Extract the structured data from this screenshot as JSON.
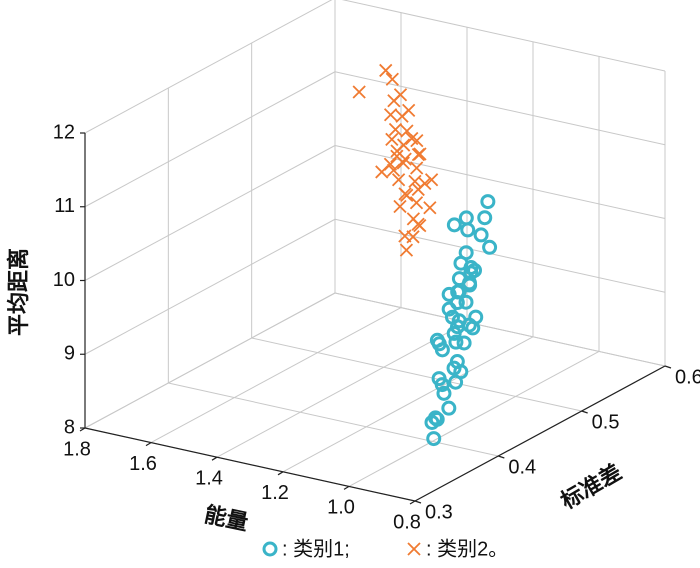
{
  "chart_data": {
    "type": "scatter3d",
    "xlabel": "能量",
    "ylabel": "标准差",
    "zlabel": "平均距离",
    "xlim": [
      1.8,
      0.8
    ],
    "ylim": [
      0.3,
      0.6
    ],
    "zlim": [
      8,
      12
    ],
    "xticks": [
      0.8,
      {
        "value": 1.0,
        "label": "1.0"
      },
      1.2,
      1.4,
      1.6,
      1.8
    ],
    "yticks": [
      0.3,
      0.4,
      0.5,
      0.6
    ],
    "zticks": [
      8,
      9,
      10,
      11,
      12
    ],
    "grid": true,
    "series": [
      {
        "name": ": 类别1;",
        "color": "#3ab4c8",
        "marker": "circle",
        "x": [
          1.05,
          1.1,
          1.0,
          1.15,
          1.08,
          1.12,
          0.98,
          1.02,
          1.2,
          1.06,
          1.11,
          1.04,
          0.95,
          1.09,
          1.13,
          1.01,
          1.07,
          1.16,
          0.99,
          1.03,
          1.18,
          1.05,
          1.1,
          0.96,
          1.14,
          1.08,
          1.02,
          1.12,
          1.0,
          1.06,
          0.92,
          1.22,
          1.04,
          1.09,
          0.97,
          1.15,
          1.11,
          1.03,
          1.07,
          0.94,
          1.19,
          1.01,
          1.13,
          1.05,
          0.9
        ],
        "y": [
          0.45,
          0.47,
          0.43,
          0.5,
          0.44,
          0.48,
          0.42,
          0.46,
          0.52,
          0.45,
          0.49,
          0.44,
          0.4,
          0.47,
          0.51,
          0.43,
          0.46,
          0.53,
          0.41,
          0.45,
          0.54,
          0.44,
          0.48,
          0.39,
          0.5,
          0.46,
          0.42,
          0.49,
          0.43,
          0.47,
          0.37,
          0.55,
          0.45,
          0.48,
          0.4,
          0.51,
          0.47,
          0.42,
          0.46,
          0.38,
          0.52,
          0.41,
          0.5,
          0.44,
          0.36
        ],
        "z": [
          9.2,
          9.5,
          8.9,
          9.8,
          9.0,
          9.6,
          8.7,
          9.3,
          10.1,
          9.1,
          9.7,
          9.4,
          8.5,
          9.9,
          10.0,
          8.8,
          9.2,
          10.3,
          8.6,
          9.0,
          9.6,
          9.5,
          9.3,
          8.4,
          9.4,
          8.9,
          9.1,
          10.2,
          9.7,
          9.8,
          8.3,
          9.9,
          8.6,
          9.0,
          8.8,
          9.5,
          10.4,
          8.7,
          9.6,
          8.5,
          9.2,
          9.3,
          8.8,
          9.7,
          8.6
        ]
      },
      {
        "name": ": 类别2。",
        "color": "#f07b32",
        "marker": "x",
        "x": [
          1.3,
          1.35,
          1.25,
          1.4,
          1.28,
          1.45,
          1.32,
          1.22,
          1.38,
          1.5,
          1.27,
          1.33,
          1.42,
          1.24,
          1.36,
          1.29,
          1.47,
          1.31,
          1.26,
          1.39,
          1.34,
          1.52,
          1.23,
          1.37,
          1.3,
          1.44,
          1.28,
          1.21,
          1.41,
          1.35,
          1.48,
          1.26,
          1.33,
          1.38,
          1.25,
          1.55,
          1.31,
          1.29,
          1.43,
          1.36
        ],
        "y": [
          0.5,
          0.52,
          0.48,
          0.53,
          0.49,
          0.54,
          0.51,
          0.47,
          0.52,
          0.55,
          0.49,
          0.5,
          0.53,
          0.48,
          0.51,
          0.5,
          0.54,
          0.49,
          0.47,
          0.52,
          0.51,
          0.55,
          0.46,
          0.5,
          0.48,
          0.53,
          0.51,
          0.46,
          0.52,
          0.49,
          0.54,
          0.5,
          0.47,
          0.51,
          0.49,
          0.53,
          0.5,
          0.48,
          0.52,
          0.5
        ],
        "z": [
          10.8,
          11.0,
          10.5,
          11.3,
          10.7,
          11.4,
          10.9,
          10.3,
          11.1,
          11.5,
          10.6,
          10.4,
          11.2,
          10.2,
          10.8,
          11.0,
          11.3,
          10.5,
          10.1,
          10.9,
          11.1,
          11.6,
          10.0,
          10.7,
          10.4,
          11.0,
          10.6,
          10.2,
          10.8,
          11.2,
          11.1,
          10.3,
          10.9,
          10.5,
          10.7,
          11.4,
          10.1,
          11.0,
          10.6,
          10.9
        ]
      }
    ]
  }
}
